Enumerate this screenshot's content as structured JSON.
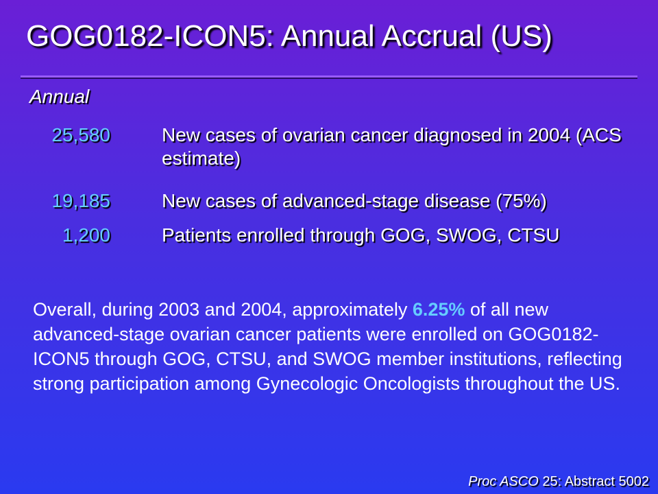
{
  "slide": {
    "title": "GOG0182-ICON5:  Annual Accrual (US)",
    "heading": "Annual",
    "rows": [
      {
        "number": "25,580",
        "description": "New cases of ovarian cancer diagnosed in 2004 (ACS estimate)"
      },
      {
        "number": "19,185",
        "description": "New cases of advanced-stage disease (75%)"
      },
      {
        "number": "1,200",
        "description": "Patients enrolled through GOG, SWOG, CTSU"
      }
    ],
    "paragraph": {
      "before": "Overall, during 2003 and 2004, approximately ",
      "highlight": "6.25%",
      "after": " of all new advanced-stage ovarian cancer patients were enrolled on GOG0182-ICON5 through GOG, CTSU, and SWOG member institutions, reflecting strong participation among Gynecologic Oncologists throughout the US."
    },
    "citation": {
      "journal": "Proc ASCO",
      "detail": " 25: Abstract 5002"
    }
  },
  "colors": {
    "background_top": "#6a1fd6",
    "background_bottom": "#2a3af0",
    "accent": "#66ccff",
    "text": "#ffffff"
  }
}
